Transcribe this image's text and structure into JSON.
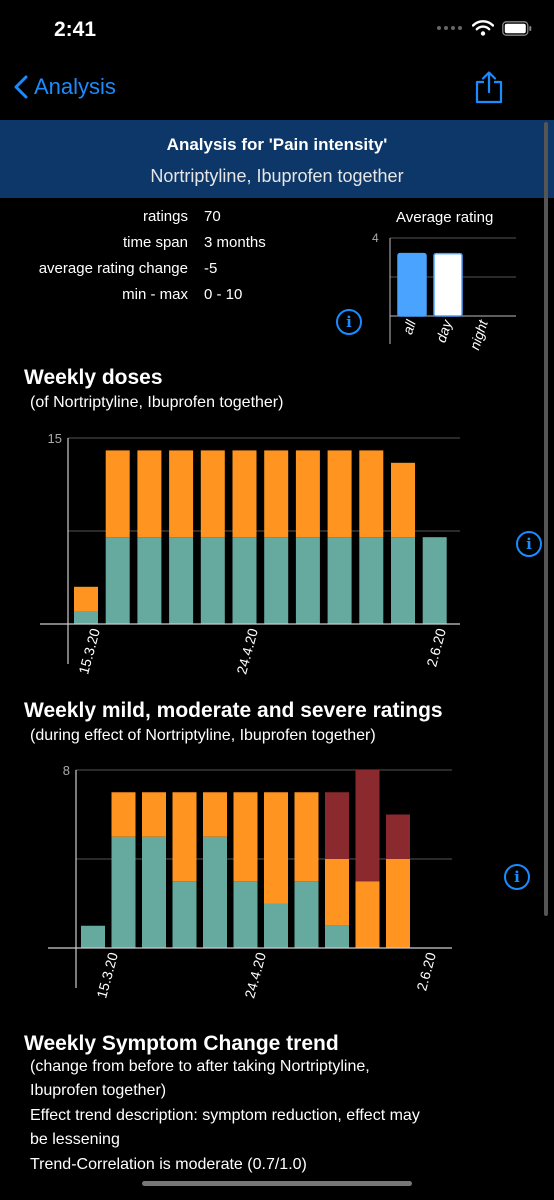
{
  "status": {
    "time": "2:41"
  },
  "nav": {
    "back_label": "Analysis"
  },
  "header": {
    "title": "Analysis for 'Pain intensity'",
    "subtitle": "Nortriptyline, Ibuprofen together"
  },
  "stats": [
    {
      "label": "ratings",
      "value": "70"
    },
    {
      "label": "time span",
      "value": "3 months"
    },
    {
      "label": "average rating change",
      "value": "-5"
    },
    {
      "label": "min - max",
      "value": "0 - 10"
    }
  ],
  "colors": {
    "accent": "#1a8cff",
    "teal": "#66aa9f",
    "orange": "#ff9421",
    "maroon": "#8a2a2f",
    "avg_blue": "#4aa3ff",
    "header_band": "#0d3768"
  },
  "avg_chart": {
    "title": "Average rating",
    "ytick": "4",
    "ylim": [
      0,
      4
    ],
    "categories": [
      "all",
      "day",
      "night"
    ],
    "bars": [
      {
        "category": "all",
        "value": 3.2,
        "fill": "#4aa3ff"
      },
      {
        "category": "day",
        "value": 3.2,
        "fill": "#ffffff"
      }
    ]
  },
  "sections": {
    "doses": {
      "title": "Weekly doses",
      "subtitle": "(of Nortriptyline, Ibuprofen together)"
    },
    "ratings": {
      "title": "Weekly mild, moderate and severe ratings",
      "subtitle": "(during effect of Nortriptyline, Ibuprofen together)"
    },
    "trend": {
      "title": "Weekly Symptom Change trend",
      "lines": [
        "(change from before to after taking Nortriptyline,",
        "Ibuprofen together)",
        "Effect trend description: symptom reduction, effect may",
        "be lessening",
        "Trend-Correlation is moderate (0.7/1.0)"
      ]
    }
  },
  "chart_data": [
    {
      "type": "bar",
      "stacked": true,
      "ylim": [
        0,
        15
      ],
      "ytick": "15",
      "x_tick_labels": [
        "15.3.20",
        "24.4.20",
        "2.6.20"
      ],
      "series": [
        {
          "values": [
            1,
            7,
            7,
            7,
            7,
            7,
            7,
            7,
            7,
            7,
            7,
            7
          ],
          "color": "#66aa9f"
        },
        {
          "values": [
            2,
            7,
            7,
            7,
            7,
            7,
            7,
            7,
            7,
            7,
            6,
            0
          ],
          "color": "#ff9421"
        }
      ]
    },
    {
      "type": "bar",
      "stacked": true,
      "ylim": [
        0,
        8
      ],
      "ytick": "8",
      "x_tick_labels": [
        "15.3.20",
        "24.4.20",
        "2.6.20"
      ],
      "series": [
        {
          "values": [
            1,
            5,
            5,
            3,
            5,
            3,
            2,
            3,
            1,
            0,
            0
          ],
          "color": "#66aa9f"
        },
        {
          "values": [
            0,
            2,
            2,
            4,
            2,
            4,
            5,
            4,
            3,
            3,
            4
          ],
          "color": "#ff9421"
        },
        {
          "values": [
            0,
            0,
            0,
            0,
            0,
            0,
            0,
            0,
            3,
            5,
            2
          ],
          "color": "#8a2a2f"
        }
      ]
    }
  ]
}
